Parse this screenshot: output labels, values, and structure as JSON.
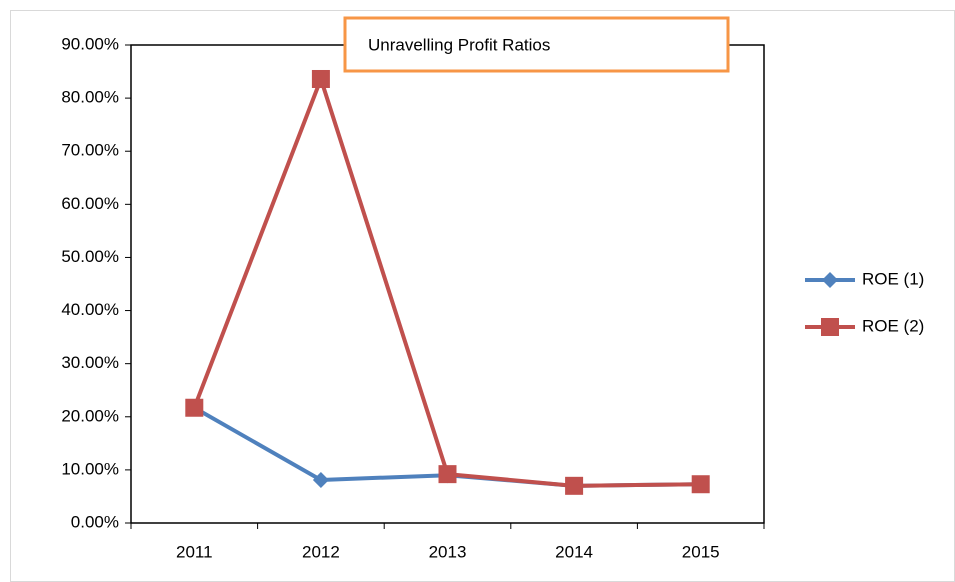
{
  "chart_data": {
    "type": "line",
    "title": "Unravelling Profit Ratios",
    "categories": [
      "2011",
      "2012",
      "2013",
      "2014",
      "2015"
    ],
    "series": [
      {
        "name": "ROE (1)",
        "color": "#4f81bd",
        "marker": "diamond",
        "values": [
          21.7,
          8.1,
          9.0,
          7.0,
          7.3
        ]
      },
      {
        "name": "ROE (2)",
        "color": "#c0504d",
        "marker": "square",
        "values": [
          21.7,
          83.6,
          9.2,
          7.0,
          7.3
        ]
      }
    ],
    "ylim": [
      0,
      90
    ],
    "yticks": [
      {
        "value": 0,
        "label": "0.00%"
      },
      {
        "value": 10,
        "label": "10.00%"
      },
      {
        "value": 20,
        "label": "20.00%"
      },
      {
        "value": 30,
        "label": "30.00%"
      },
      {
        "value": 40,
        "label": "40.00%"
      },
      {
        "value": 50,
        "label": "50.00%"
      },
      {
        "value": 60,
        "label": "60.00%"
      },
      {
        "value": 70,
        "label": "70.00%"
      },
      {
        "value": 80,
        "label": "80.00%"
      },
      {
        "value": 90,
        "label": "90.00%"
      }
    ],
    "legend": "right"
  }
}
